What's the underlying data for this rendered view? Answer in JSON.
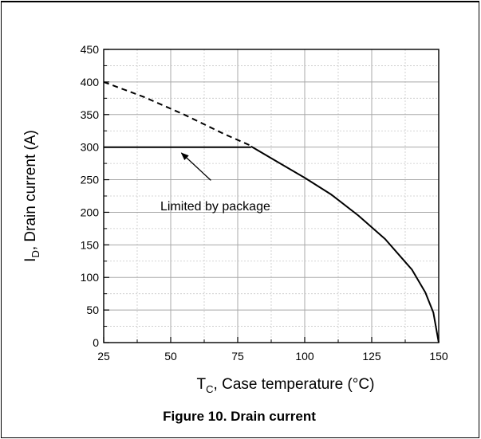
{
  "chart_data": {
    "type": "line",
    "title": "",
    "caption": "Figure 10. Drain current",
    "xlabel": {
      "main": "T",
      "sub": "C",
      "rest": ", Case temperature (°C)"
    },
    "ylabel": {
      "main": "I",
      "sub": "D",
      "rest": ", Drain current (A)"
    },
    "xlim": [
      25,
      150
    ],
    "ylim": [
      0,
      450
    ],
    "xticks": [
      25,
      50,
      75,
      100,
      125,
      150
    ],
    "yticks": [
      0,
      50,
      100,
      150,
      200,
      250,
      300,
      350,
      400,
      450
    ],
    "grid": true,
    "series": [
      {
        "style": "dashed",
        "x": [
          25,
          40,
          55,
          70,
          80
        ],
        "y": [
          400,
          377,
          350,
          320,
          302
        ]
      },
      {
        "style": "solid",
        "x": [
          25,
          80
        ],
        "y": [
          300,
          300
        ]
      },
      {
        "style": "solid",
        "x": [
          80,
          90,
          100,
          110,
          120,
          130,
          140,
          145,
          148,
          150
        ],
        "y": [
          301,
          277,
          253,
          227,
          195,
          159,
          112,
          77,
          46,
          0
        ]
      }
    ],
    "annotations": [
      {
        "text": "Limited by package",
        "arrow_from": [
          65,
          249
        ],
        "arrow_to": [
          54,
          291
        ]
      }
    ]
  }
}
